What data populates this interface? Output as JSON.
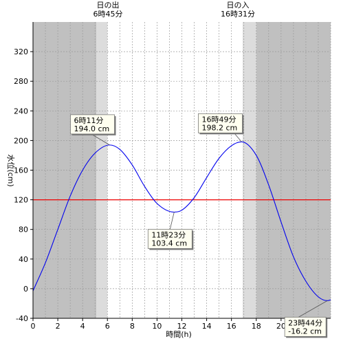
{
  "chart_data": {
    "type": "line",
    "xlabel": "時間(h)",
    "ylabel": "水位(cm)",
    "xlim": [
      0,
      24
    ],
    "ylim": [
      -40,
      360
    ],
    "x_ticks": [
      0,
      2,
      4,
      6,
      8,
      10,
      12,
      14,
      16,
      18,
      20
    ],
    "y_ticks": [
      -40,
      0,
      40,
      80,
      120,
      160,
      200,
      240,
      280,
      320
    ],
    "grid": true,
    "colors": {
      "line": "#0000ee",
      "reference": "#ee0000",
      "night": "#c0c0c0",
      "twilight": "#dcdcdc",
      "day": "#ffffff"
    },
    "reference_line": {
      "value": 120
    },
    "daylight": {
      "sunrise": {
        "label": "日の出",
        "time": "6時45分",
        "hour": 6.75
      },
      "sunset": {
        "label": "日の入",
        "time": "16時31分",
        "hour": 16.52
      },
      "twilight_bands": [
        [
          5.1,
          6.0
        ],
        [
          16.9,
          18.0
        ]
      ],
      "night_bands": [
        [
          0,
          5.1
        ],
        [
          18.0,
          24
        ]
      ]
    },
    "series": [
      {
        "x": [
          0,
          1,
          2,
          3,
          4,
          5,
          6.18,
          7,
          8,
          9,
          10,
          11.38,
          12,
          13,
          14,
          15,
          16,
          16.82,
          18,
          19,
          20,
          21,
          22,
          23,
          23.73,
          24
        ],
        "values": [
          -3,
          35,
          80,
          125,
          160,
          183,
          194.0,
          188,
          167,
          138,
          115,
          103.4,
          106,
          123,
          150,
          176,
          193,
          198.2,
          180,
          140,
          90,
          43,
          10,
          -11,
          -16.2,
          -15
        ]
      }
    ],
    "annotations": [
      {
        "time": "6時11分",
        "value": "194.0 cm",
        "x": 6.18,
        "y": 194.0
      },
      {
        "time": "11時23分",
        "value": "103.4 cm",
        "x": 11.38,
        "y": 103.4
      },
      {
        "time": "16時49分",
        "value": "198.2 cm",
        "x": 16.82,
        "y": 198.2
      },
      {
        "time": "23時44分",
        "value": "-16.2 cm",
        "x": 23.73,
        "y": -16.2
      }
    ]
  }
}
